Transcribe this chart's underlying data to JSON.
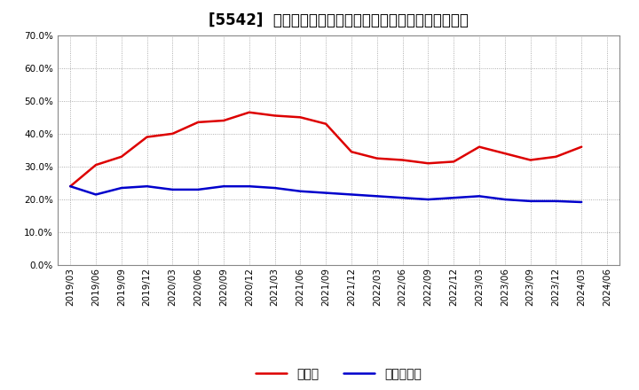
{
  "title": "[5542]  現預金、有利子負債の総資産に対する比率の推移",
  "x_labels": [
    "2019/03",
    "2019/06",
    "2019/09",
    "2019/12",
    "2020/03",
    "2020/06",
    "2020/09",
    "2020/12",
    "2021/03",
    "2021/06",
    "2021/09",
    "2021/12",
    "2022/03",
    "2022/06",
    "2022/09",
    "2022/12",
    "2023/03",
    "2023/06",
    "2023/09",
    "2023/12",
    "2024/03",
    "2024/06"
  ],
  "cash": [
    0.24,
    0.305,
    0.33,
    0.39,
    0.4,
    0.435,
    0.44,
    0.465,
    0.455,
    0.45,
    0.43,
    0.345,
    0.325,
    0.32,
    0.31,
    0.315,
    0.36,
    0.34,
    0.32,
    0.33,
    0.36,
    null
  ],
  "debt": [
    0.24,
    0.215,
    0.235,
    0.24,
    0.23,
    0.23,
    0.24,
    0.24,
    0.235,
    0.225,
    0.22,
    0.215,
    0.21,
    0.205,
    0.2,
    0.205,
    0.21,
    0.2,
    0.195,
    0.195,
    0.192,
    null
  ],
  "cash_color": "#dd0000",
  "debt_color": "#0000cc",
  "background_color": "#ffffff",
  "grid_color": "#999999",
  "ylim": [
    0.0,
    0.7
  ],
  "yticks": [
    0.0,
    0.1,
    0.2,
    0.3,
    0.4,
    0.5,
    0.6,
    0.7
  ],
  "legend_cash": "現預金",
  "legend_debt": "有利子負債",
  "title_fontsize": 12,
  "tick_fontsize": 7.5,
  "legend_fontsize": 10
}
